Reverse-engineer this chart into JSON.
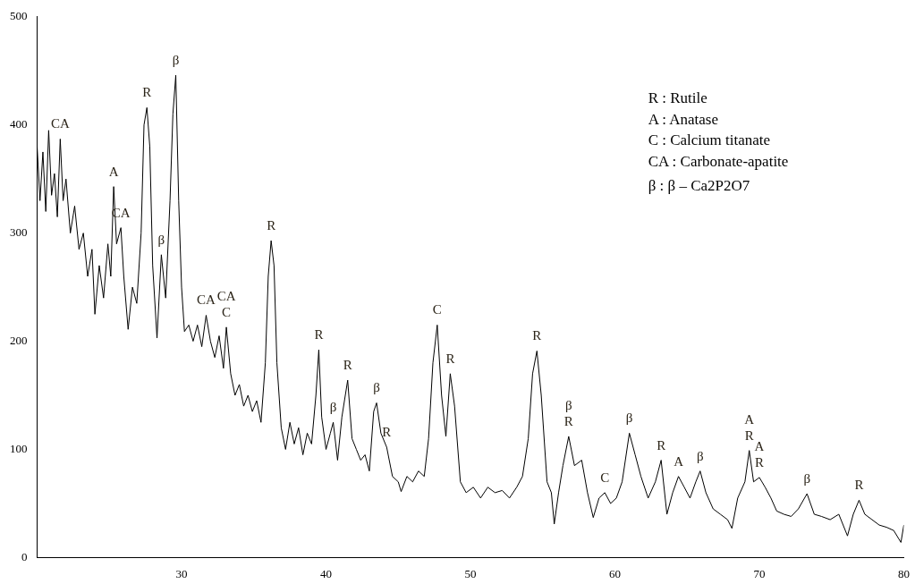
{
  "chart_data": {
    "type": "line",
    "xlim": [
      20,
      80
    ],
    "xticks": [
      30,
      40,
      50,
      60,
      70,
      80
    ],
    "ylim": [
      0,
      500
    ],
    "yticks": [
      0,
      100,
      200,
      300,
      400,
      500
    ],
    "grid": false,
    "legend": false,
    "marker": "none",
    "line_style": "solid",
    "series": [
      {
        "color": "#000000",
        "x": [
          20,
          20.2,
          20.4,
          20.6,
          20.8,
          21,
          21.2,
          21.4,
          21.6,
          21.8,
          22,
          22.3,
          22.6,
          22.9,
          23.2,
          23.5,
          23.8,
          24,
          24.3,
          24.6,
          24.9,
          25.1,
          25.3,
          25.5,
          25.8,
          26,
          26.3,
          26.6,
          26.9,
          27.2,
          27.4,
          27.6,
          27.8,
          28,
          28.3,
          28.6,
          28.9,
          29.2,
          29.4,
          29.6,
          29.8,
          30,
          30.2,
          30.5,
          30.8,
          31.1,
          31.4,
          31.7,
          32,
          32.3,
          32.6,
          32.9,
          33.1,
          33.4,
          33.7,
          34,
          34.3,
          34.6,
          34.9,
          35.2,
          35.5,
          35.8,
          36,
          36.2,
          36.4,
          36.6,
          36.9,
          37.2,
          37.5,
          37.8,
          38.1,
          38.4,
          38.7,
          39,
          39.3,
          39.5,
          39.7,
          40,
          40.3,
          40.5,
          40.8,
          41.1,
          41.5,
          41.8,
          42.1,
          42.4,
          42.7,
          43,
          43.3,
          43.5,
          43.8,
          44.2,
          44.6,
          45,
          45.2,
          45.6,
          46,
          46.4,
          46.8,
          47.1,
          47.4,
          47.7,
          48,
          48.3,
          48.6,
          48.9,
          49.3,
          49.7,
          50.2,
          50.7,
          51.2,
          51.7,
          52.2,
          52.7,
          53.2,
          53.6,
          54,
          54.3,
          54.6,
          54.9,
          55.3,
          55.6,
          55.8,
          56.1,
          56.4,
          56.8,
          57.2,
          57.7,
          58.1,
          58.5,
          58.9,
          59.3,
          59.7,
          60.1,
          60.5,
          61,
          61.4,
          61.8,
          62.3,
          62.8,
          63.2,
          63.6,
          64,
          64.4,
          64.8,
          65.2,
          65.6,
          65.9,
          66.3,
          66.8,
          67.3,
          67.8,
          68.1,
          68.5,
          69,
          69.3,
          69.6,
          70,
          70.4,
          70.8,
          71.2,
          71.7,
          72.2,
          72.7,
          73.3,
          73.8,
          74.3,
          74.9,
          75.5,
          76.1,
          76.5,
          76.9,
          77.3,
          77.8,
          78.3,
          78.8,
          79.3,
          79.8,
          80
        ],
        "values": [
          380,
          330,
          375,
          320,
          395,
          335,
          355,
          315,
          387,
          330,
          350,
          300,
          325,
          285,
          300,
          260,
          285,
          225,
          270,
          240,
          290,
          260,
          343,
          290,
          305,
          260,
          211,
          250,
          235,
          300,
          400,
          416,
          380,
          270,
          203,
          280,
          240,
          330,
          410,
          446,
          330,
          250,
          209,
          215,
          200,
          215,
          195,
          224,
          200,
          185,
          205,
          175,
          213,
          170,
          150,
          160,
          140,
          150,
          135,
          145,
          125,
          180,
          260,
          293,
          270,
          180,
          120,
          100,
          125,
          105,
          120,
          95,
          115,
          105,
          150,
          192,
          130,
          100,
          115,
          125,
          90,
          130,
          164,
          110,
          100,
          90,
          95,
          80,
          135,
          143,
          115,
          102,
          75,
          70,
          61,
          75,
          70,
          80,
          75,
          110,
          180,
          215,
          150,
          112,
          170,
          140,
          70,
          60,
          65,
          55,
          65,
          60,
          62,
          55,
          65,
          75,
          110,
          170,
          191,
          150,
          70,
          60,
          31,
          60,
          85,
          112,
          85,
          90,
          60,
          37,
          55,
          60,
          50,
          55,
          70,
          115,
          95,
          75,
          55,
          70,
          90,
          40,
          60,
          75,
          65,
          55,
          70,
          80,
          60,
          45,
          40,
          35,
          27,
          55,
          70,
          99,
          70,
          74,
          65,
          55,
          43,
          40,
          38,
          45,
          59,
          40,
          38,
          35,
          40,
          20,
          40,
          53,
          40,
          35,
          30,
          28,
          25,
          14,
          30
        ]
      }
    ],
    "annotations": [
      {
        "text": "CA",
        "x": 21.6,
        "y": 387
      },
      {
        "text": "A",
        "x": 25.3,
        "y": 343
      },
      {
        "text": "CA",
        "x": 25.8,
        "y": 305
      },
      {
        "text": "R",
        "x": 27.6,
        "y": 416
      },
      {
        "text": "β",
        "x": 28.6,
        "y": 280
      },
      {
        "text": "β",
        "x": 29.6,
        "y": 446
      },
      {
        "text": "CA",
        "x": 31.7,
        "y": 224
      },
      {
        "text": "C",
        "x": 33.1,
        "y": 213
      },
      {
        "text": "CA",
        "x": 33.1,
        "y": 213
      },
      {
        "text": "R",
        "x": 36.2,
        "y": 293
      },
      {
        "text": "R",
        "x": 39.5,
        "y": 192
      },
      {
        "text": "β",
        "x": 40.5,
        "y": 125
      },
      {
        "text": "R",
        "x": 41.5,
        "y": 164
      },
      {
        "text": "β",
        "x": 43.5,
        "y": 143
      },
      {
        "text": "R",
        "x": 44.2,
        "y": 102
      },
      {
        "text": "C",
        "x": 47.7,
        "y": 215
      },
      {
        "text": "R",
        "x": 48.6,
        "y": 170
      },
      {
        "text": "R",
        "x": 54.6,
        "y": 191
      },
      {
        "text": "R",
        "x": 56.8,
        "y": 112
      },
      {
        "text": "β",
        "x": 56.8,
        "y": 112
      },
      {
        "text": "C",
        "x": 59.3,
        "y": 60
      },
      {
        "text": "β",
        "x": 61,
        "y": 115
      },
      {
        "text": "R",
        "x": 63.2,
        "y": 90
      },
      {
        "text": "A",
        "x": 64.4,
        "y": 75
      },
      {
        "text": "β",
        "x": 65.9,
        "y": 80
      },
      {
        "text": "R",
        "x": 69.3,
        "y": 99
      },
      {
        "text": "A",
        "x": 69.3,
        "y": 99
      },
      {
        "text": "R",
        "x": 70,
        "y": 74
      },
      {
        "text": "A",
        "x": 70,
        "y": 74
      },
      {
        "text": "β",
        "x": 73.3,
        "y": 59
      },
      {
        "text": "R",
        "x": 76.9,
        "y": 53
      },
      "R : Rutile",
      "A : Anatase",
      "C : Calcium titanate",
      "CA : Carbonate-apatite",
      "β : β – Ca2P2O7"
    ]
  }
}
